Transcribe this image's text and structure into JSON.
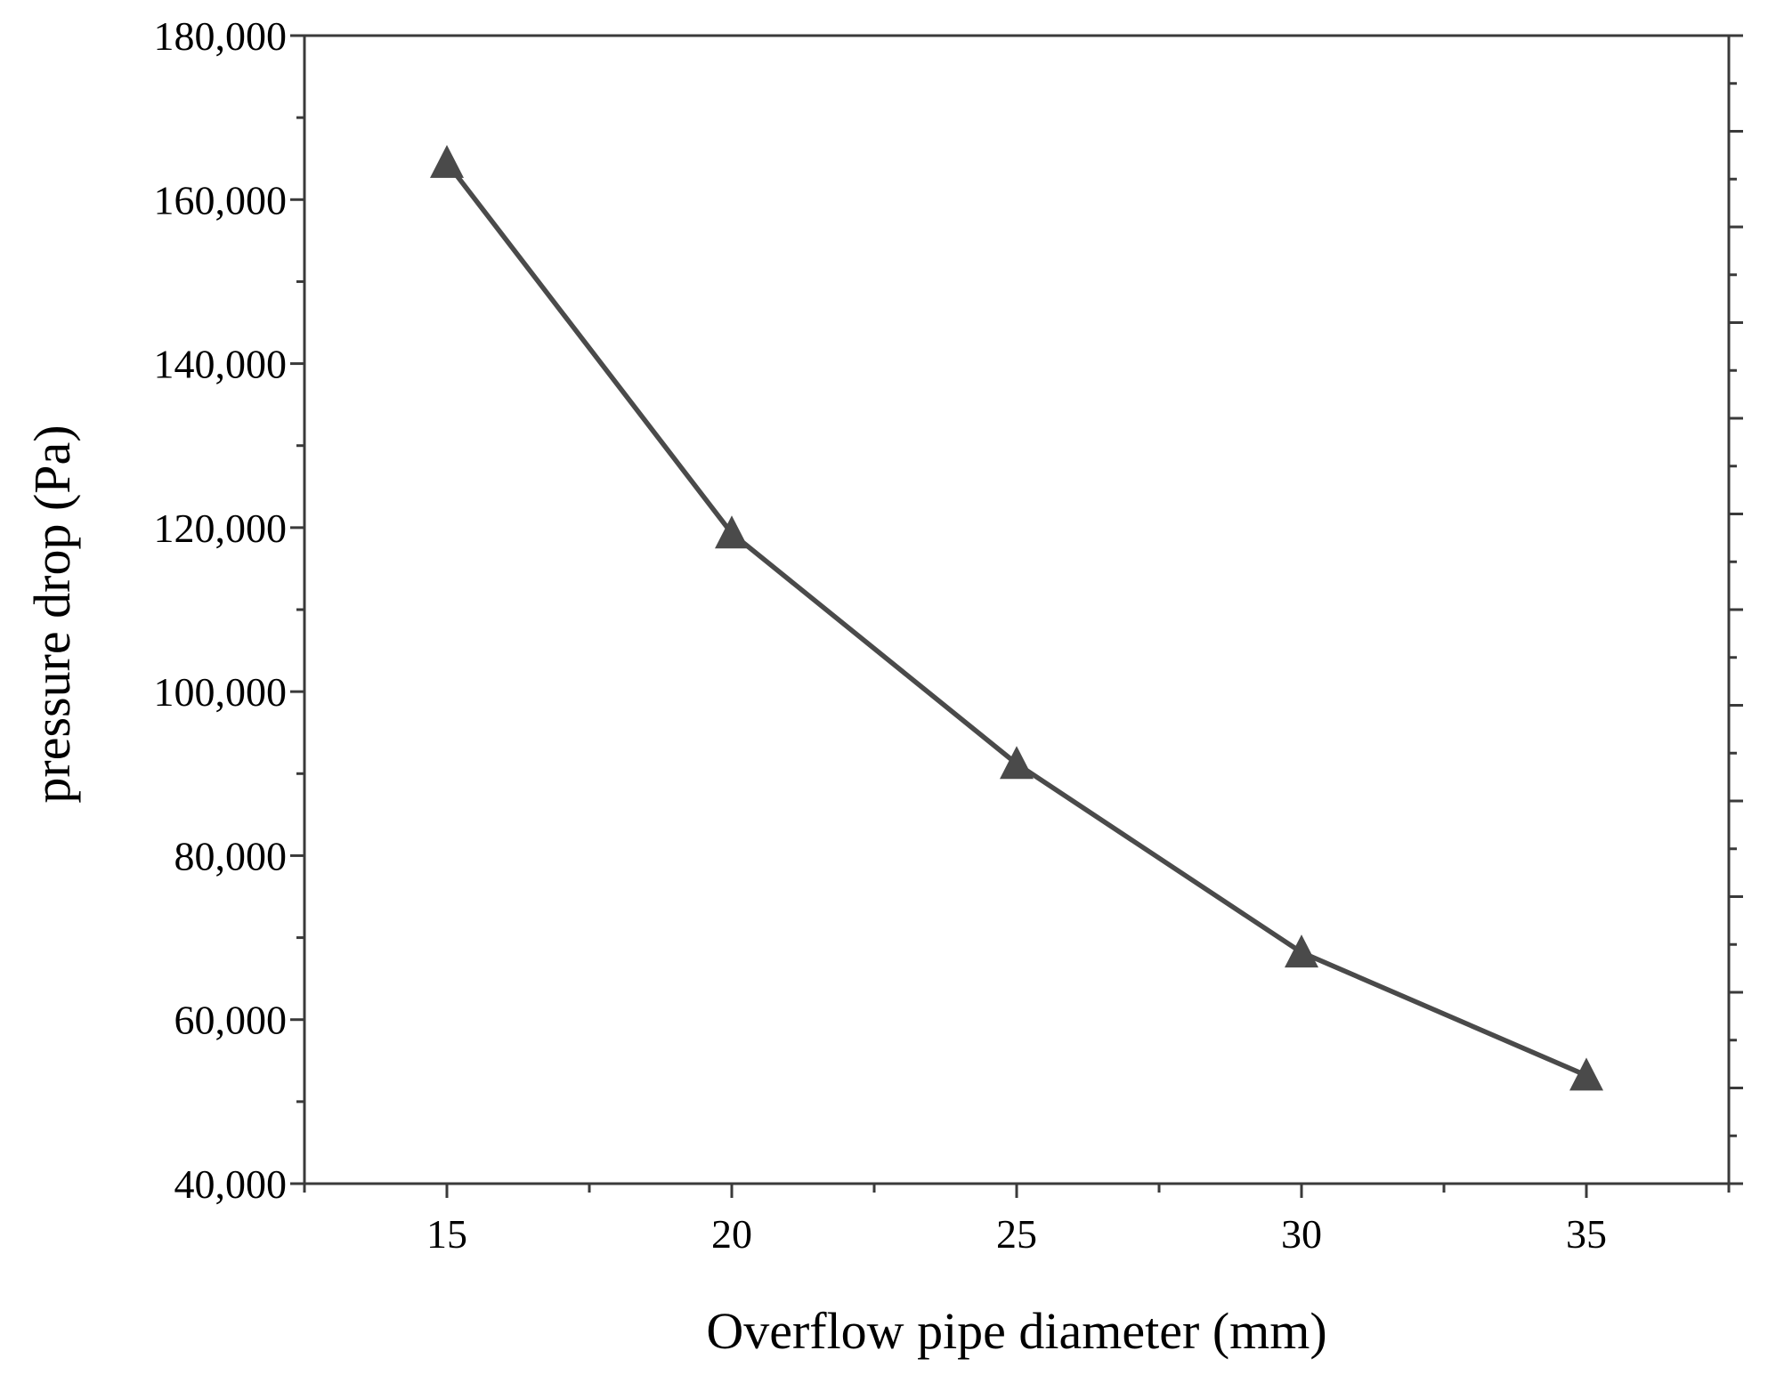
{
  "chart_data": {
    "type": "line",
    "title": "",
    "xlabel": "Overflow pipe diameter (mm)",
    "ylabel": "pressure drop (Pa)",
    "x": [
      15,
      20,
      25,
      30,
      35
    ],
    "series": [
      {
        "values": [
          164500,
          119300,
          91200,
          68200,
          53200
        ]
      }
    ],
    "xlim": [
      12.5,
      37.5
    ],
    "ylim": [
      40000,
      180000
    ],
    "x_ticks": [
      15,
      20,
      25,
      30,
      35
    ],
    "x_tick_labels": [
      "15",
      "20",
      "25",
      "30",
      "35"
    ],
    "y_ticks": [
      40000,
      60000,
      80000,
      100000,
      120000,
      140000,
      160000,
      180000
    ],
    "y_tick_labels": [
      "40,000",
      "60,000",
      "80,000",
      "100,000",
      "120,000",
      "140,000",
      "160,000",
      "180,000"
    ],
    "marker": "triangle",
    "grid": false,
    "legend": "none",
    "colors": {
      "series": "#4a4a4a",
      "axis": "#3a3a3a",
      "text": "#000000"
    }
  }
}
